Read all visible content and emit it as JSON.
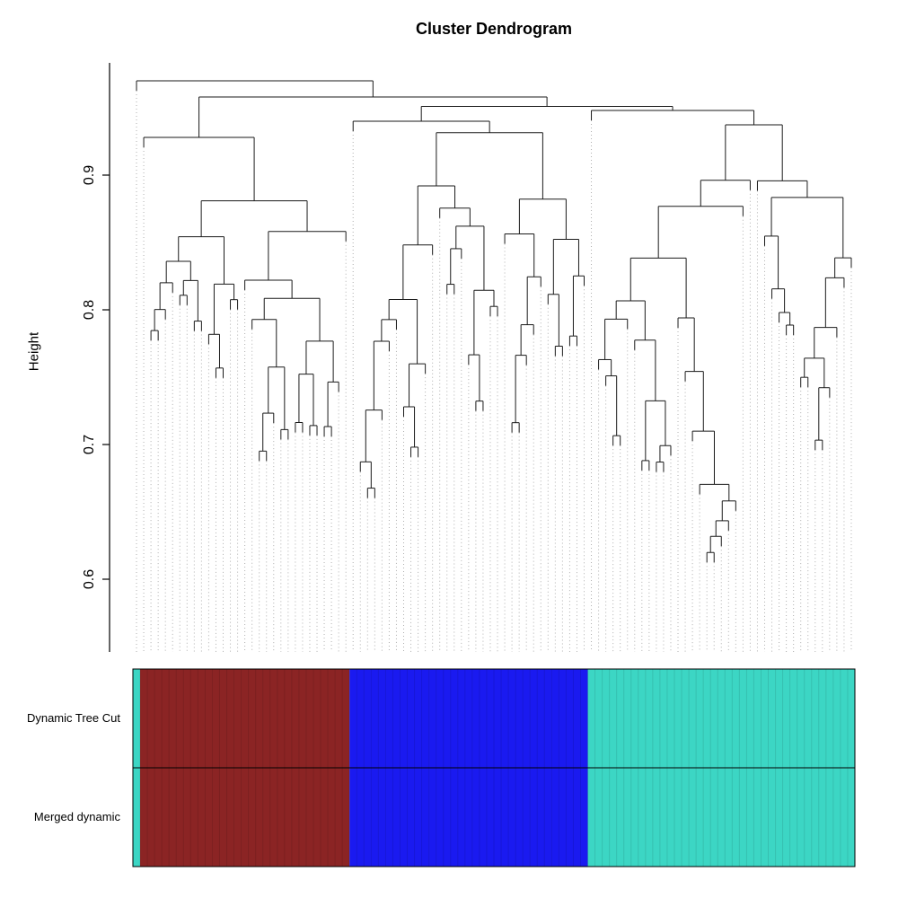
{
  "chart_data": {
    "type": "dendrogram",
    "title": "Cluster Dendrogram",
    "ylabel": "Height",
    "yticks": [
      0.6,
      0.7,
      0.8,
      0.9
    ],
    "ylim": [
      0.545,
      0.985
    ],
    "n_leaves": 100,
    "seed": 7,
    "root_height": 0.97,
    "join_heights": {
      "root": 0.97,
      "left_vs_rest": 0.958,
      "mid_vs_right": 0.951
    },
    "clusters": [
      {
        "name": "unassigned-left",
        "n": 1,
        "color": "#3CD6C4"
      },
      {
        "name": "brown-module",
        "n": 29,
        "top": 0.928,
        "floor": 0.68,
        "chain": 0.5,
        "dmin": 0.008,
        "dvar": 0.04,
        "color": "#8B2424"
      },
      {
        "name": "blue-module",
        "n": 33,
        "top": 0.94,
        "floor": 0.575,
        "chain": 0.55,
        "dmin": 0.008,
        "dvar": 0.05,
        "color": "#1A1AF0"
      },
      {
        "name": "turquoise-module",
        "n": 37,
        "top": 0.948,
        "floor": 0.6,
        "chain": 0.6,
        "dmin": 0.008,
        "dvar": 0.04,
        "color": "#3CD6C4"
      }
    ],
    "line_color": "#1a1a1a",
    "leaf_line_color": "#b0b0b0",
    "bands": {
      "rows": [
        {
          "label": "Dynamic Tree Cut",
          "segments": [
            {
              "color": "#3CD6C4",
              "leaves": 1
            },
            {
              "color": "#8B2424",
              "leaves": 29
            },
            {
              "color": "#1A1AF0",
              "leaves": 33
            },
            {
              "color": "#3CD6C4",
              "leaves": 37
            }
          ]
        },
        {
          "label": "Merged dynamic",
          "segments": [
            {
              "color": "#3CD6C4",
              "leaves": 1
            },
            {
              "color": "#8B2424",
              "leaves": 29
            },
            {
              "color": "#1A1AF0",
              "leaves": 33
            },
            {
              "color": "#3CD6C4",
              "leaves": 37
            }
          ]
        }
      ]
    }
  }
}
